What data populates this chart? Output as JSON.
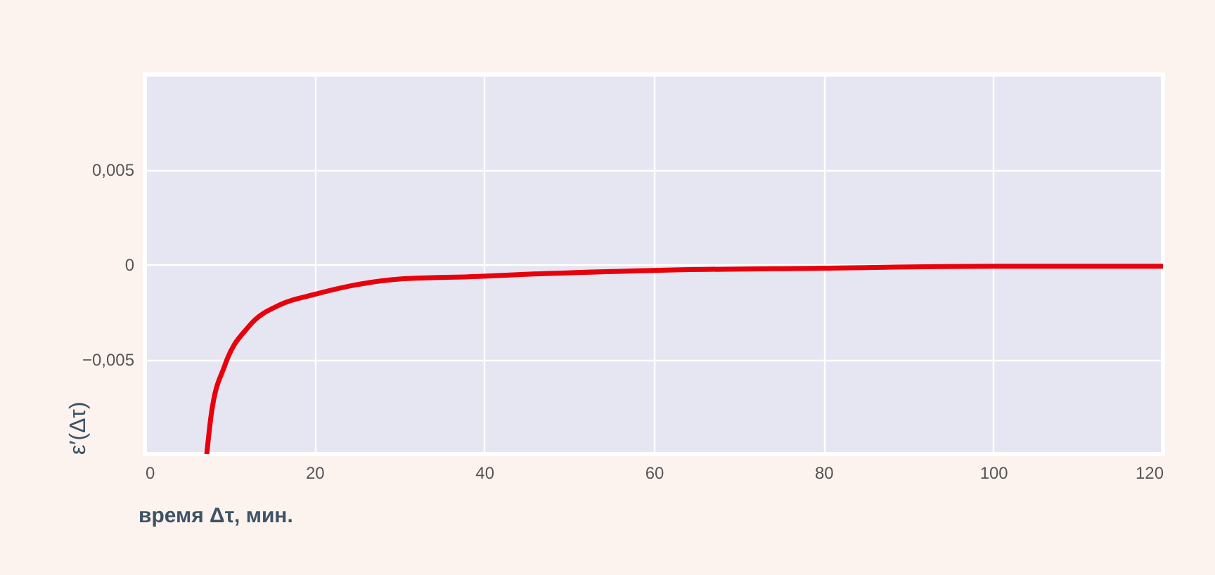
{
  "chart_data": {
    "type": "line",
    "xlabel": "время Δτ, мин.",
    "ylabel": "ε′(Δτ)",
    "x": [
      7.3,
      7.8,
      9.45,
      12.2,
      16.1,
      19.9,
      24.9,
      30.5,
      39.3,
      42.6,
      60,
      80,
      100,
      120
    ],
    "series": [
      {
        "color": "#e8000b",
        "values": [
          -0.01,
          -0.008,
          -0.0053,
          -0.0033,
          -0.0021,
          -0.0016,
          -0.00108,
          -0.00076,
          -0.00064,
          -0.00057,
          -0.00032,
          -0.0002,
          -0.0001,
          -0.0001
        ]
      }
    ],
    "xlim": [
      0,
      120
    ],
    "xticks": [
      0,
      20,
      40,
      60,
      80,
      100,
      120
    ],
    "ylim": [
      -0.01,
      0.01
    ],
    "yticks": [
      {
        "value": -0.005,
        "label": "−0,005"
      },
      0,
      {
        "value": 0.005,
        "label": "0,005"
      }
    ],
    "grid": true,
    "marker": "none",
    "line_style": "solid"
  }
}
